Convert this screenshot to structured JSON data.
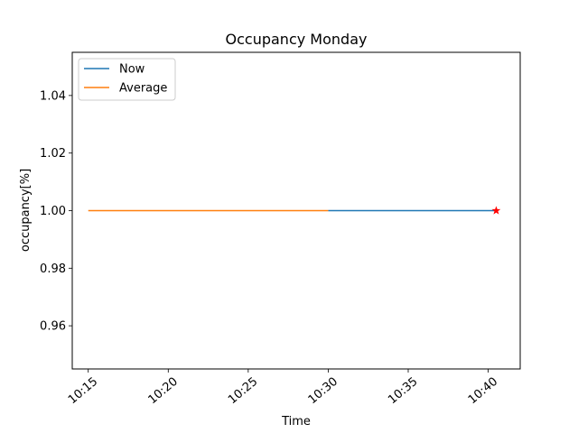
{
  "chart_data": {
    "type": "line",
    "title": "Occupancy Monday",
    "xlabel": "Time",
    "ylabel": "occupancy[%]",
    "x_ticks": [
      "10:15",
      "10:20",
      "10:25",
      "10:30",
      "10:35",
      "10:40"
    ],
    "y_ticks": [
      "0.96",
      "0.98",
      "1.00",
      "1.02",
      "1.04"
    ],
    "xlim": [
      "10:14",
      "10:42"
    ],
    "ylim": [
      0.945,
      1.055
    ],
    "grid": false,
    "legend_position": "top-left",
    "series": [
      {
        "name": "Now",
        "color": "#1f77b4",
        "points": [
          {
            "x": "10:30",
            "y": 1.0
          },
          {
            "x": "10:40:30",
            "y": 1.0
          }
        ]
      },
      {
        "name": "Average",
        "color": "#ff7f0e",
        "points": [
          {
            "x": "10:15",
            "y": 1.0
          },
          {
            "x": "10:30",
            "y": 1.0
          }
        ]
      }
    ],
    "markers": [
      {
        "x": "10:40:30",
        "y": 1.0,
        "shape": "star",
        "color": "#ff0000"
      }
    ]
  }
}
